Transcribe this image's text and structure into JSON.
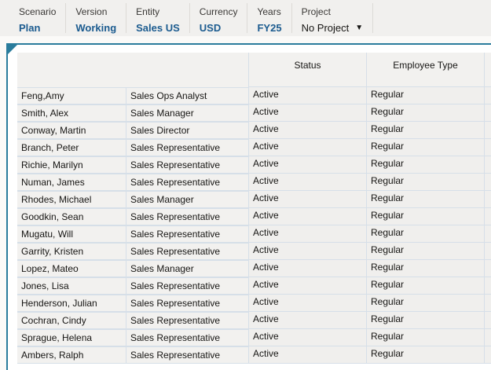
{
  "pov": [
    {
      "label": "Scenario",
      "value": "Plan"
    },
    {
      "label": "Version",
      "value": "Working"
    },
    {
      "label": "Entity",
      "value": "Sales US"
    },
    {
      "label": "Currency",
      "value": "USD"
    },
    {
      "label": "Years",
      "value": "FY25"
    }
  ],
  "project": {
    "label": "Project",
    "value": "No Project",
    "icon": "caret-down-icon"
  },
  "columns": [
    "Status",
    "Employee Type"
  ],
  "rows": [
    [
      "Feng,Amy",
      "Sales Ops Analyst",
      "Active",
      "Regular"
    ],
    [
      "Smith, Alex",
      "Sales Manager",
      "Active",
      "Regular"
    ],
    [
      "Conway, Martin",
      "Sales Director",
      "Active",
      "Regular"
    ],
    [
      "Branch, Peter",
      "Sales Representative",
      "Active",
      "Regular"
    ],
    [
      "Richie, Marilyn",
      "Sales Representative",
      "Active",
      "Regular"
    ],
    [
      "Numan, James",
      "Sales Representative",
      "Active",
      "Regular"
    ],
    [
      "Rhodes, Michael",
      "Sales Manager",
      "Active",
      "Regular"
    ],
    [
      "Goodkin, Sean",
      "Sales Representative",
      "Active",
      "Regular"
    ],
    [
      "Mugatu, Will",
      "Sales Representative",
      "Active",
      "Regular"
    ],
    [
      "Garrity, Kristen",
      "Sales Representative",
      "Active",
      "Regular"
    ],
    [
      "Lopez, Mateo",
      "Sales Manager",
      "Active",
      "Regular"
    ],
    [
      "Jones, Lisa",
      "Sales Representative",
      "Active",
      "Regular"
    ],
    [
      "Henderson, Julian",
      "Sales Representative",
      "Active",
      "Regular"
    ],
    [
      "Cochran, Cindy",
      "Sales Representative",
      "Active",
      "Regular"
    ],
    [
      "Sprague, Helena",
      "Sales Representative",
      "Active",
      "Regular"
    ],
    [
      "Ambers, Ralph",
      "Sales Representative",
      "Active",
      "Regular"
    ]
  ]
}
